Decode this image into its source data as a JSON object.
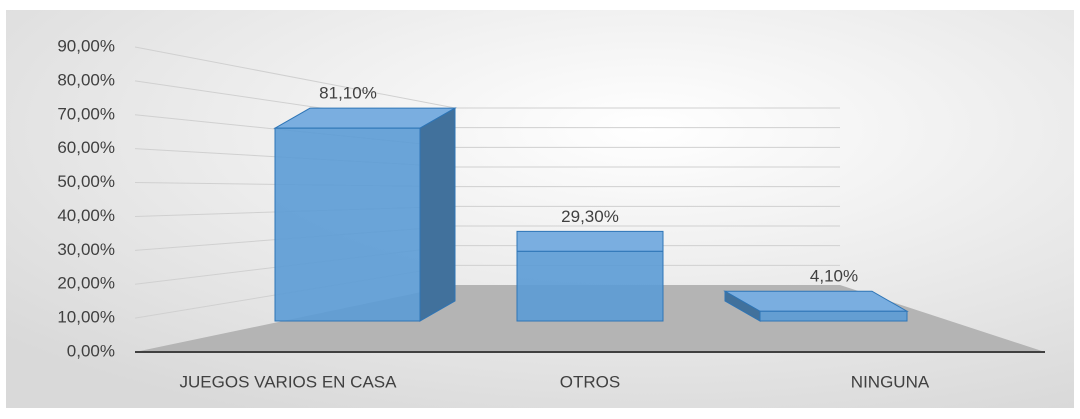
{
  "chart_data": {
    "type": "bar3d",
    "categories": [
      "JUEGOS VARIOS EN CASA",
      "OTROS",
      "NINGUNA"
    ],
    "values": [
      81.1,
      29.3,
      4.1
    ],
    "value_labels": [
      "81,10%",
      "29,30%",
      "4,10%"
    ],
    "color": "#5b9bd5",
    "ylim": [
      0,
      90
    ],
    "yticks": [
      {
        "value": 0,
        "label": "0,00%"
      },
      {
        "value": 10,
        "label": "10,00%"
      },
      {
        "value": 20,
        "label": "20,00%"
      },
      {
        "value": 30,
        "label": "30,00%"
      },
      {
        "value": 40,
        "label": "40,00%"
      },
      {
        "value": 50,
        "label": "50,00%"
      },
      {
        "value": 60,
        "label": "60,00%"
      },
      {
        "value": 70,
        "label": "70,00%"
      },
      {
        "value": 80,
        "label": "80,00%"
      },
      {
        "value": 90,
        "label": "90,00%"
      }
    ],
    "grid": true
  }
}
